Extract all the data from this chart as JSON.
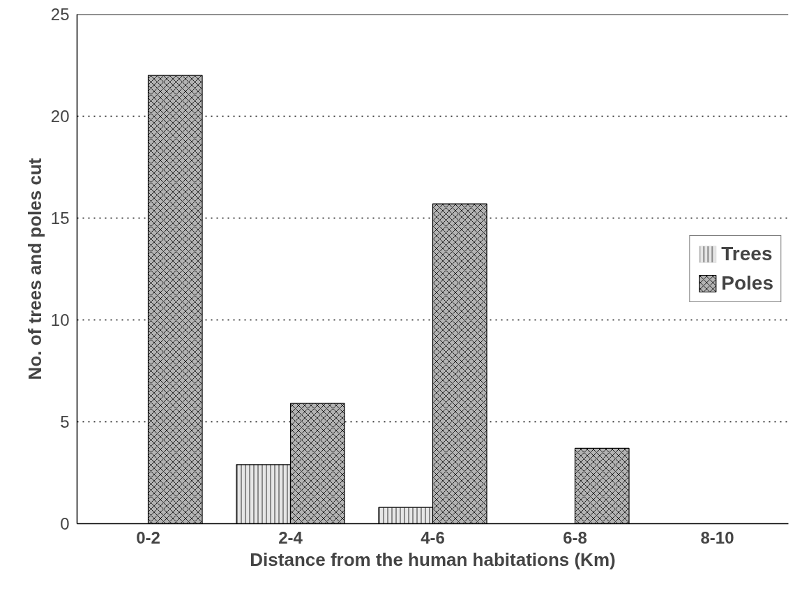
{
  "chart_data": {
    "type": "bar",
    "xlabel": "Distance from the human habitations (Km)",
    "ylabel": "No. of trees and poles cut",
    "categories": [
      "0-2",
      "2-4",
      "4-6",
      "6-8",
      "8-10"
    ],
    "series": [
      {
        "name": "Trees",
        "color": "#e6e6e6",
        "values": [
          0,
          2.9,
          0.8,
          0,
          0
        ]
      },
      {
        "name": "Poles",
        "color": "#b3b3b3",
        "values": [
          22,
          5.9,
          15.7,
          3.7,
          0
        ]
      }
    ],
    "ylim": [
      0,
      25
    ],
    "yticks": [
      0,
      5,
      10,
      15,
      20,
      25
    ],
    "grid": "y",
    "legend": "right"
  }
}
